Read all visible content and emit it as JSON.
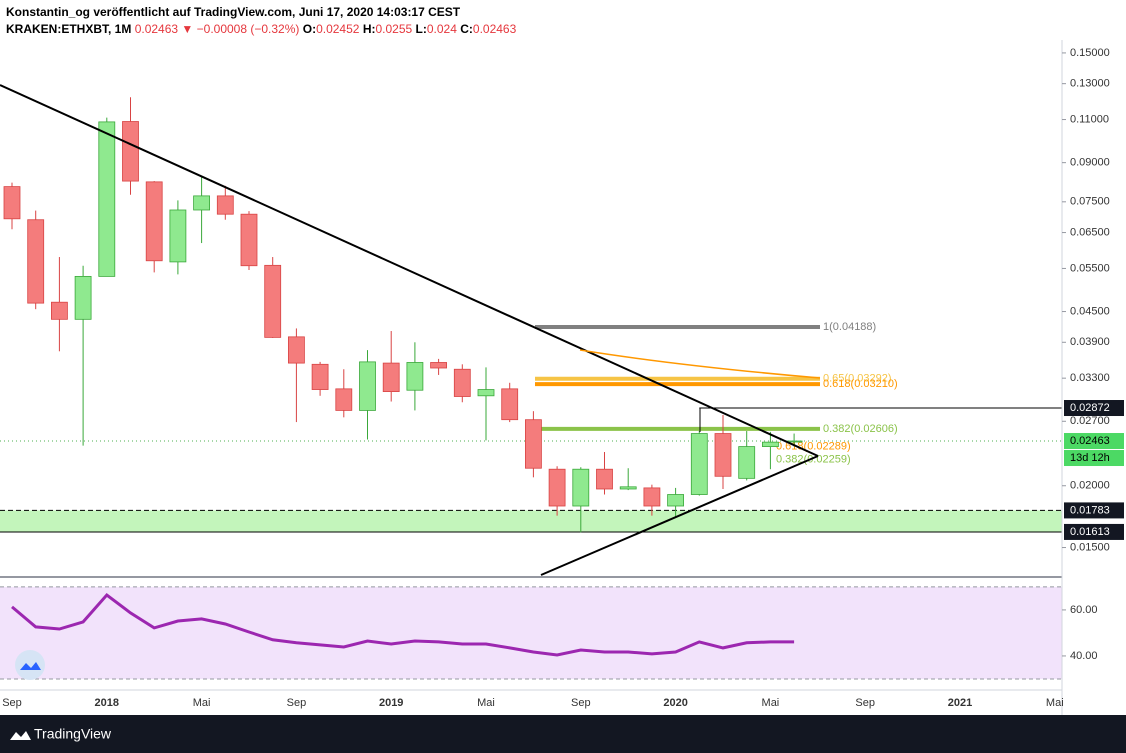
{
  "header": {
    "publisher": "Konstantin_og veröffentlicht auf TradingView.com, Juni 17, 2020 14:03:17 CEST"
  },
  "footer": {
    "brand": "TradingView"
  },
  "chart_data": [
    {
      "type": "candlestick",
      "symbol": "KRAKEN:ETHXBT, 1M",
      "change": "▼ −0.00008 (−0.32%)",
      "ohlc_labels": [
        "O:",
        "H:",
        "L:",
        "C:"
      ],
      "categories": [
        "Sep",
        null,
        null,
        null,
        "2018",
        null,
        null,
        null,
        "Mai",
        null,
        null,
        null,
        "Sep",
        null,
        null,
        null,
        "2019",
        null,
        null,
        null,
        "Mai",
        null,
        null,
        null,
        "Sep",
        null,
        null,
        null,
        "2020",
        null,
        null,
        null,
        "Mai",
        null,
        null,
        null,
        "Sep",
        null,
        null,
        null,
        "2021",
        null,
        null,
        null,
        "Mai"
      ],
      "open": [
        0.0805,
        0.069,
        0.047,
        0.0434,
        0.053,
        0.109,
        0.0823,
        0.0567,
        0.0722,
        0.0771,
        0.0708,
        0.0558,
        0.04,
        0.0352,
        0.0314,
        0.0284,
        0.0354,
        0.0312,
        0.0355,
        0.0344,
        0.0304,
        0.0314,
        0.0272,
        0.0216,
        0.0182,
        0.0216,
        0.0197,
        0.0198,
        0.0182,
        0.0192,
        0.0255,
        0.0207,
        0.024,
        0.02452,
        null,
        null,
        null,
        null,
        null,
        null,
        null,
        null,
        null,
        null,
        null
      ],
      "high": [
        0.082,
        0.072,
        0.058,
        0.0557,
        0.111,
        0.122,
        0.0826,
        0.0755,
        0.0845,
        0.0808,
        0.0718,
        0.058,
        0.0416,
        0.0356,
        0.0344,
        0.0376,
        0.0411,
        0.039,
        0.0361,
        0.0352,
        0.0347,
        0.0323,
        0.0283,
        0.0219,
        0.0218,
        0.0234,
        0.0217,
        0.0201,
        0.0198,
        0.0258,
        0.0278,
        0.0258,
        0.0257,
        0.0255,
        null,
        null,
        null,
        null,
        null,
        null,
        null,
        null,
        null,
        null,
        null
      ],
      "low": [
        0.066,
        0.0455,
        0.0374,
        0.0241,
        0.053,
        0.0775,
        0.054,
        0.0535,
        0.0619,
        0.069,
        0.0546,
        0.0398,
        0.0269,
        0.0304,
        0.0275,
        0.0248,
        0.0296,
        0.0284,
        0.0335,
        0.0295,
        0.0247,
        0.0269,
        0.0208,
        0.0174,
        0.0161,
        0.0192,
        0.0196,
        0.0174,
        0.0173,
        0.0191,
        0.0197,
        0.0205,
        0.0216,
        0.024,
        null,
        null,
        null,
        null,
        null,
        null,
        null,
        null,
        null,
        null,
        null
      ],
      "close": [
        0.0693,
        0.0468,
        0.0434,
        0.053,
        0.1088,
        0.0826,
        0.057,
        0.0722,
        0.0771,
        0.0708,
        0.0557,
        0.0399,
        0.0354,
        0.0313,
        0.0284,
        0.0356,
        0.031,
        0.0355,
        0.0346,
        0.0303,
        0.0313,
        0.0272,
        0.0217,
        0.0182,
        0.0216,
        0.0197,
        0.0199,
        0.0182,
        0.0192,
        0.0255,
        0.0209,
        0.024,
        0.0245,
        0.02463,
        null,
        null,
        null,
        null,
        null,
        null,
        null,
        null,
        null,
        null,
        null
      ],
      "up_color": "#8fe98f",
      "down_color": "#f47c7c",
      "log_scale": true,
      "ylim": [
        0.0132,
        0.1593
      ],
      "yticks": [
        {
          "value": 0.15,
          "label": "0.15000"
        },
        {
          "value": 0.13,
          "label": "0.13000"
        },
        {
          "value": 0.11,
          "label": "0.11000"
        },
        {
          "value": 0.09,
          "label": "0.09000"
        },
        {
          "value": 0.075,
          "label": "0.07500"
        },
        {
          "value": 0.065,
          "label": "0.06500"
        },
        {
          "value": 0.055,
          "label": "0.05500"
        },
        {
          "value": 0.045,
          "label": "0.04500"
        },
        {
          "value": 0.039,
          "label": "0.03900"
        },
        {
          "value": 0.033,
          "label": "0.03300"
        },
        {
          "value": 0.027,
          "label": "0.02700"
        },
        {
          "value": 0.02,
          "label": "0.02000"
        },
        {
          "value": 0.015,
          "label": "0.01500"
        }
      ],
      "price_lines": [
        0.02872,
        0.01783,
        0.01613
      ],
      "zone_color": "#c3f5bb",
      "countdown": "13d 12h",
      "fib_levels": [
        {
          "value": 0.04188,
          "label": "1(0.04188)",
          "color": "#808080"
        },
        {
          "value": 0.03292,
          "label": "0.65(0.03292)",
          "color": "#f6c445"
        },
        {
          "value": 0.0321,
          "label": "0.618(0.03210)",
          "color": "#ff9800"
        },
        {
          "value": 0.02606,
          "label": "0.382(0.02606)",
          "color": "#8bc34a"
        }
      ],
      "fib_levels_lower": [
        {
          "value": 0.02289,
          "label": "0.618(0.02289)",
          "color": "#ff9800"
        },
        {
          "value": 0.02259,
          "label": "0.382(0.02259)",
          "color": "#8bc34a"
        }
      ]
    },
    {
      "type": "line",
      "values": [
        61.3,
        52.6,
        51.7,
        54.8,
        66.5,
        58.7,
        52.2,
        55.2,
        56.1,
        53.9,
        50.4,
        47.0,
        45.7,
        44.8,
        43.9,
        46.5,
        45.2,
        46.5,
        46.1,
        45.2,
        45.2,
        43.5,
        41.7,
        40.4,
        42.6,
        41.7,
        41.7,
        40.9,
        41.7,
        46.1,
        43.5,
        45.7,
        46.1,
        46.1
      ],
      "color": "#9c27b0",
      "ylim": [
        25.2,
        73
      ],
      "yticks": [
        {
          "value": 60,
          "label": "60.00"
        },
        {
          "value": 40,
          "label": "40.00"
        }
      ],
      "band": [
        30,
        70
      ],
      "band_color": "#f2e3fb"
    }
  ]
}
